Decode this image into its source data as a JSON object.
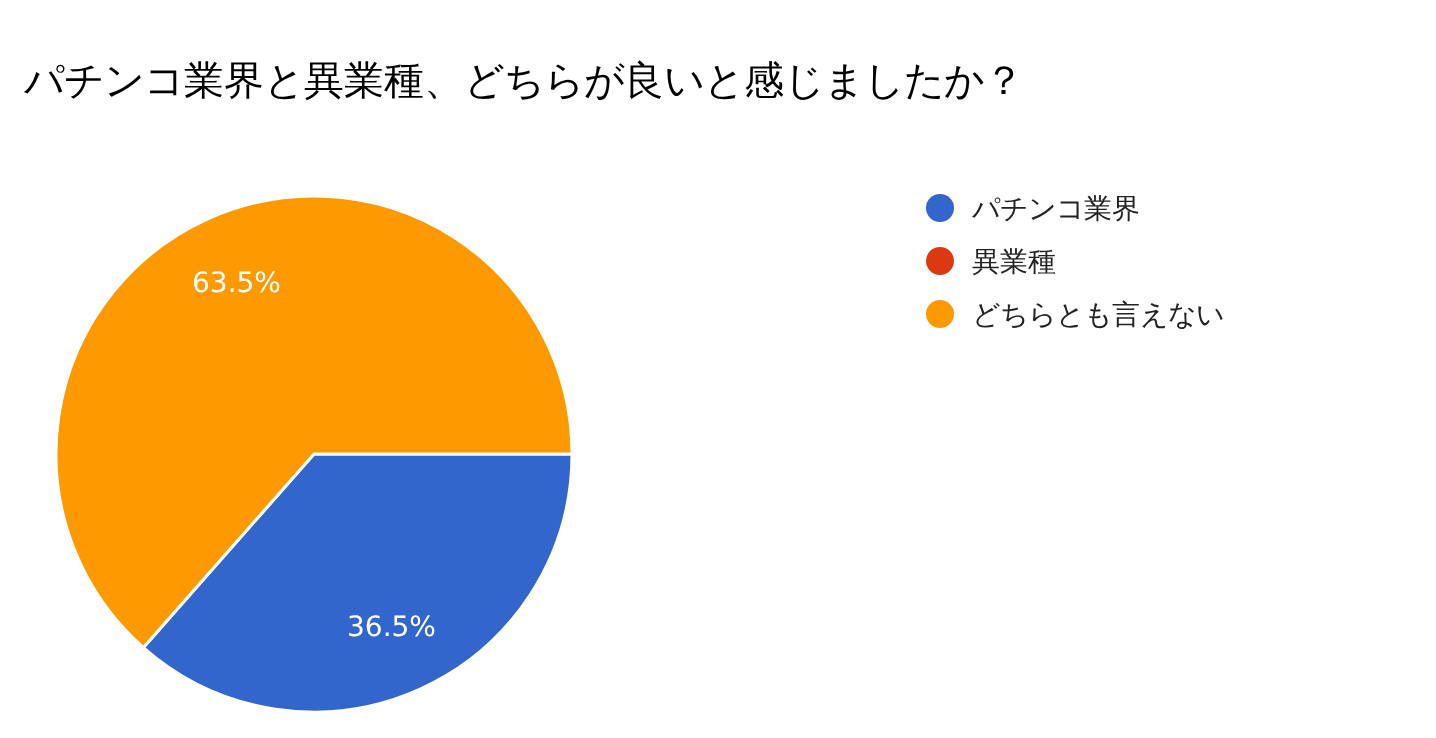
{
  "chart_data": {
    "type": "pie",
    "title": "パチンコ業界と異業種、どちらが良いと感じましたか？",
    "categories": [
      "パチンコ業界",
      "異業種",
      "どちらとも言えない"
    ],
    "values": [
      36.5,
      0,
      63.5
    ],
    "colors": [
      "#3366cc",
      "#dc3912",
      "#ff9900"
    ],
    "value_labels": [
      "36.5%",
      null,
      "63.5%"
    ],
    "legend": "right"
  }
}
